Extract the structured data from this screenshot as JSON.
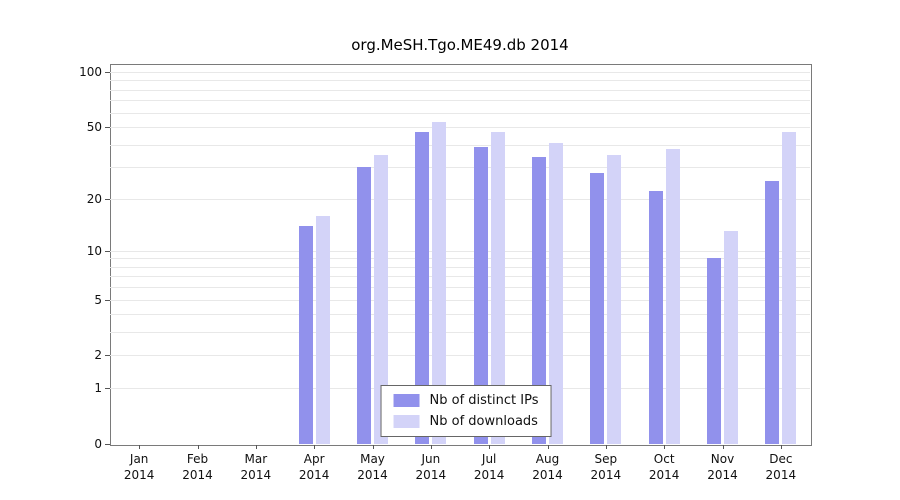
{
  "chart_data": {
    "type": "bar",
    "title": "org.MeSH.Tgo.ME49.db 2014",
    "year": "2014",
    "categories": [
      "Jan",
      "Feb",
      "Mar",
      "Apr",
      "May",
      "Jun",
      "Jul",
      "Aug",
      "Sep",
      "Oct",
      "Nov",
      "Dec"
    ],
    "series": [
      {
        "name": "Nb of distinct IPs",
        "color": "#9191ec",
        "values": [
          0,
          0,
          0,
          14,
          30,
          47,
          39,
          34,
          28,
          22,
          9,
          25
        ]
      },
      {
        "name": "Nb of downloads",
        "color": "#d3d3f8",
        "values": [
          0,
          0,
          0,
          16,
          35,
          53,
          47,
          41,
          35,
          38,
          13,
          47
        ]
      }
    ],
    "yticks": [
      0,
      1,
      2,
      5,
      10,
      20,
      50,
      100
    ],
    "ylim": [
      0,
      100
    ],
    "yscale": "log1p",
    "grid": true,
    "legend_position": "bottom-center"
  }
}
